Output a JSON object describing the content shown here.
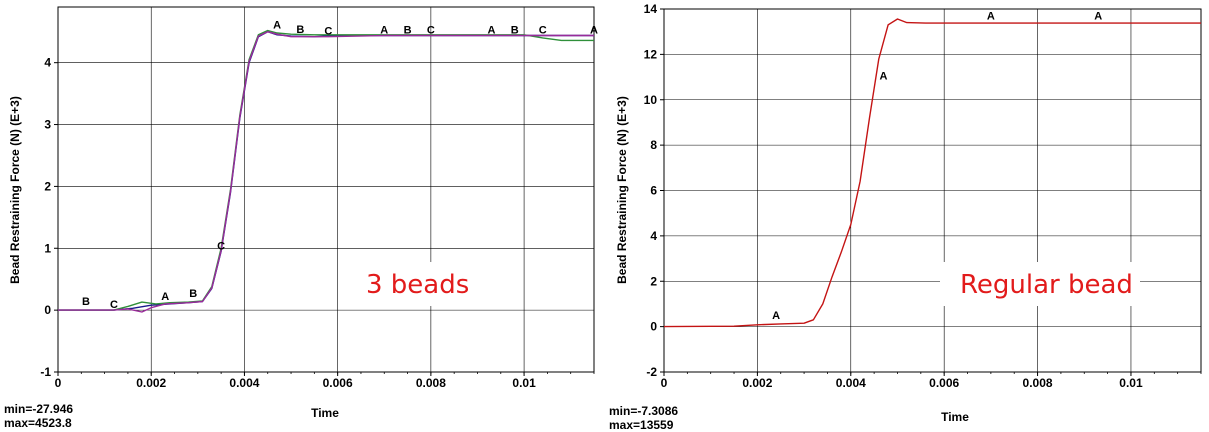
{
  "chart_data": [
    {
      "type": "line",
      "xlabel": "Time",
      "ylabel": "Bead Restraining Force (N) (E+3)",
      "xlim": [
        0,
        0.0115
      ],
      "ylim": [
        -1,
        4.9
      ],
      "xticks": [
        0,
        0.002,
        0.004,
        0.006,
        0.008,
        0.01
      ],
      "xtick_labels": [
        "0",
        "0.002",
        "0.004",
        "0.006",
        "0.008",
        "0.01"
      ],
      "yticks": [
        -1,
        0,
        1,
        2,
        3,
        4
      ],
      "ytick_labels": [
        "-1",
        "0",
        "1",
        "2",
        "3",
        "4"
      ],
      "grid": true,
      "annotation": "3 beads",
      "min_label": "min=-27.946",
      "max_label": "max=4523.8",
      "series": [
        {
          "id": "A",
          "color": "#1a1a8c",
          "x": [
            0,
            0.0012,
            0.0016,
            0.002,
            0.0024,
            0.0028,
            0.0031,
            0.0033,
            0.0035,
            0.0037,
            0.0039,
            0.0041,
            0.0043,
            0.0045,
            0.0047,
            0.005,
            0.0055,
            0.006,
            0.007,
            0.008,
            0.009,
            0.01,
            0.0115
          ],
          "y": [
            0,
            0,
            0.03,
            0.08,
            0.1,
            0.12,
            0.14,
            0.35,
            0.95,
            1.9,
            3.1,
            4.0,
            4.42,
            4.5,
            4.45,
            4.43,
            4.42,
            4.44,
            4.44,
            4.44,
            4.44,
            4.44,
            4.44
          ],
          "markers": [
            [
              0.0023,
              0.13
            ],
            [
              0.0047,
              4.52
            ],
            [
              0.007,
              4.44
            ],
            [
              0.0093,
              4.44
            ],
            [
              0.0115,
              4.44
            ]
          ]
        },
        {
          "id": "B",
          "color": "#2f8f3a",
          "x": [
            0,
            0.0012,
            0.0015,
            0.0018,
            0.0021,
            0.0024,
            0.0028,
            0.0031,
            0.0033,
            0.0035,
            0.0037,
            0.0039,
            0.0041,
            0.0043,
            0.0045,
            0.0047,
            0.005,
            0.0055,
            0.006,
            0.008,
            0.01,
            0.0104,
            0.0108,
            0.0115
          ],
          "y": [
            0,
            0,
            0.06,
            0.13,
            0.1,
            0.12,
            0.13,
            0.15,
            0.38,
            1.0,
            1.95,
            3.15,
            4.05,
            4.45,
            4.52,
            4.48,
            4.46,
            4.45,
            4.45,
            4.45,
            4.45,
            4.4,
            4.36,
            4.36
          ],
          "markers": [
            [
              0.0006,
              0.05
            ],
            [
              0.0029,
              0.18
            ],
            [
              0.0052,
              4.45
            ],
            [
              0.0075,
              4.44
            ],
            [
              0.0098,
              4.44
            ]
          ]
        },
        {
          "id": "C",
          "color": "#9a2b9a",
          "x": [
            0,
            0.0012,
            0.0015,
            0.0018,
            0.002,
            0.0023,
            0.0028,
            0.0031,
            0.0033,
            0.0035,
            0.0037,
            0.0039,
            0.0041,
            0.0043,
            0.0045,
            0.0047,
            0.005,
            0.0058,
            0.007,
            0.009,
            0.0115
          ],
          "y": [
            0,
            0,
            0.02,
            -0.03,
            0.04,
            0.1,
            0.12,
            0.14,
            0.36,
            0.96,
            1.92,
            3.12,
            4.02,
            4.43,
            4.5,
            4.46,
            4.42,
            4.42,
            4.44,
            4.44,
            4.44
          ],
          "markers": [
            [
              0.0012,
              0.0
            ],
            [
              0.0035,
              0.95
            ],
            [
              0.0058,
              4.42
            ],
            [
              0.008,
              4.44
            ],
            [
              0.0104,
              4.44
            ]
          ]
        }
      ]
    },
    {
      "type": "line",
      "xlabel": "Time",
      "ylabel": "Bead Restraining Force (N) (E+3)",
      "xlim": [
        0,
        0.0115
      ],
      "ylim": [
        -2,
        14
      ],
      "xticks": [
        0,
        0.002,
        0.004,
        0.006,
        0.008,
        0.01
      ],
      "xtick_labels": [
        "0",
        "0.002",
        "0.004",
        "0.006",
        "0.008",
        "0.01"
      ],
      "yticks": [
        -2,
        0,
        2,
        4,
        6,
        8,
        10,
        12,
        14
      ],
      "ytick_labels": [
        "-2",
        "0",
        "2",
        "4",
        "6",
        "8",
        "10",
        "12",
        "14"
      ],
      "grid": true,
      "annotation": "Regular bead",
      "min_label": "min=-7.3086",
      "max_label": "max=13559",
      "series": [
        {
          "id": "A",
          "color": "#c41414",
          "x": [
            0,
            0.0015,
            0.002,
            0.0025,
            0.003,
            0.0032,
            0.0034,
            0.0036,
            0.0038,
            0.004,
            0.0042,
            0.0044,
            0.0046,
            0.0048,
            0.005,
            0.0052,
            0.0056,
            0.007,
            0.009,
            0.0115
          ],
          "y": [
            0,
            0.02,
            0.08,
            0.12,
            0.15,
            0.3,
            1.0,
            2.2,
            3.3,
            4.5,
            6.4,
            9.2,
            11.8,
            13.3,
            13.56,
            13.4,
            13.38,
            13.38,
            13.38,
            13.38
          ],
          "markers": [
            [
              0.0024,
              0.25
            ],
            [
              0.0047,
              10.8
            ],
            [
              0.007,
              13.45
            ],
            [
              0.0093,
              13.45
            ]
          ]
        }
      ]
    }
  ]
}
